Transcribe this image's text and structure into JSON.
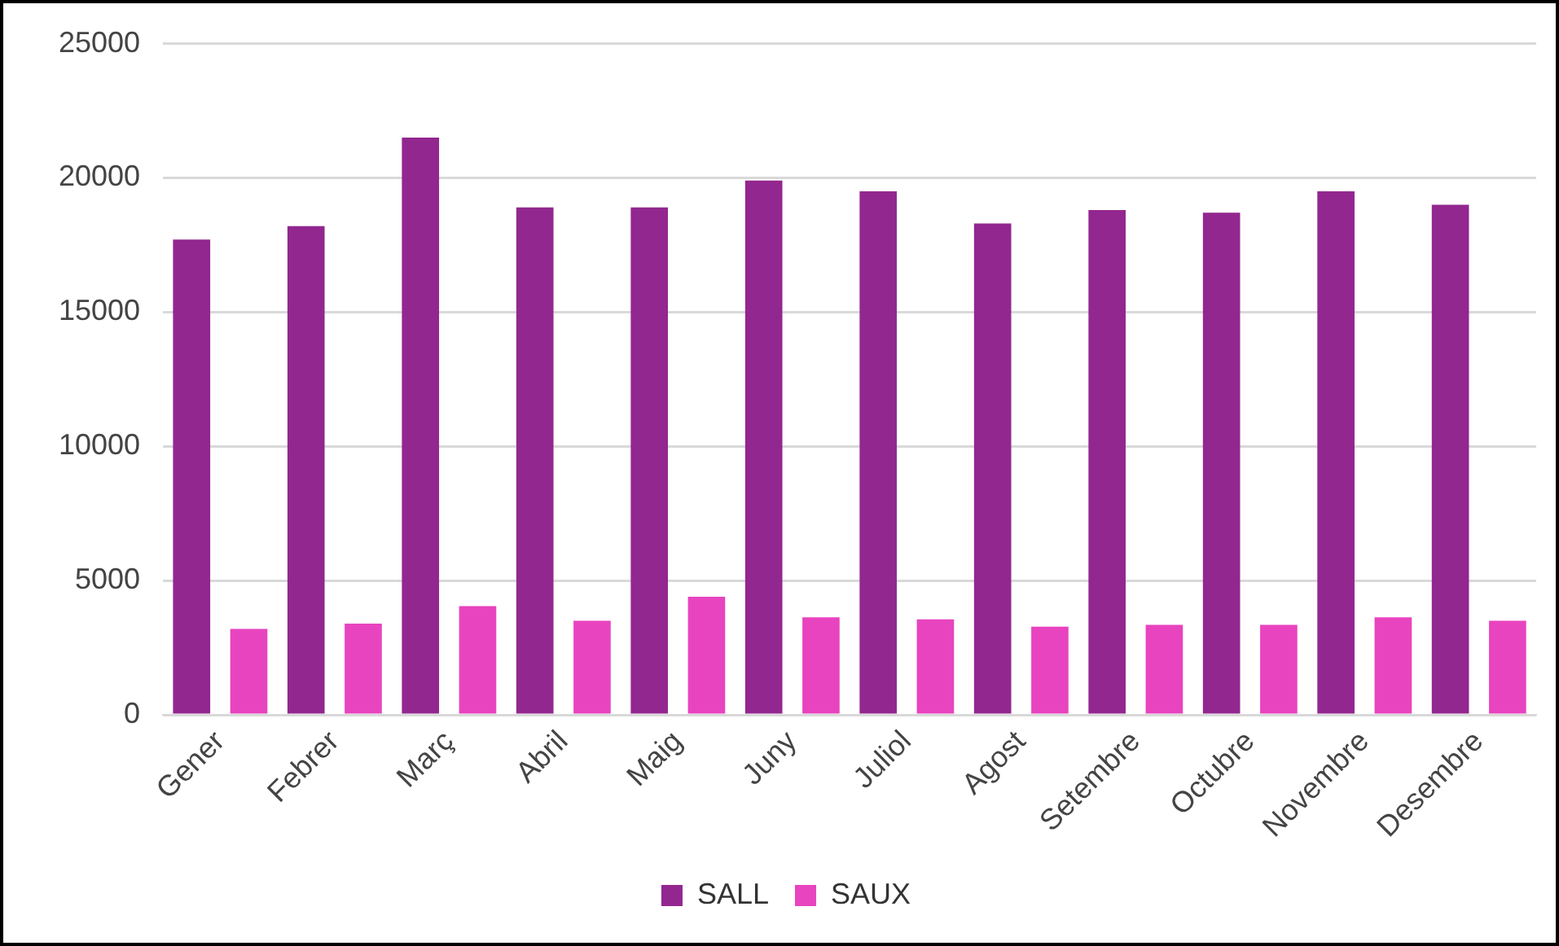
{
  "chart_data": {
    "type": "bar",
    "categories": [
      "Gener",
      "Febrer",
      "Març",
      "Abril",
      "Maig",
      "Juny",
      "Juliol",
      "Agost",
      "Setembre",
      "Octubre",
      "Novembre",
      "Desembre"
    ],
    "series": [
      {
        "name": "SALL",
        "color": "#92278f",
        "values": [
          17700,
          18200,
          21500,
          18900,
          18900,
          19900,
          19500,
          18300,
          18800,
          18700,
          19500,
          19000
        ]
      },
      {
        "name": "SAUX",
        "color": "#e844bf",
        "values": [
          3200,
          3400,
          4050,
          3500,
          4400,
          3630,
          3560,
          3280,
          3350,
          3350,
          3630,
          3500
        ]
      }
    ],
    "ylim": [
      0,
      25000
    ],
    "yticks": [
      0,
      5000,
      10000,
      15000,
      20000,
      25000
    ],
    "grid": "y",
    "legend": "bottom"
  }
}
